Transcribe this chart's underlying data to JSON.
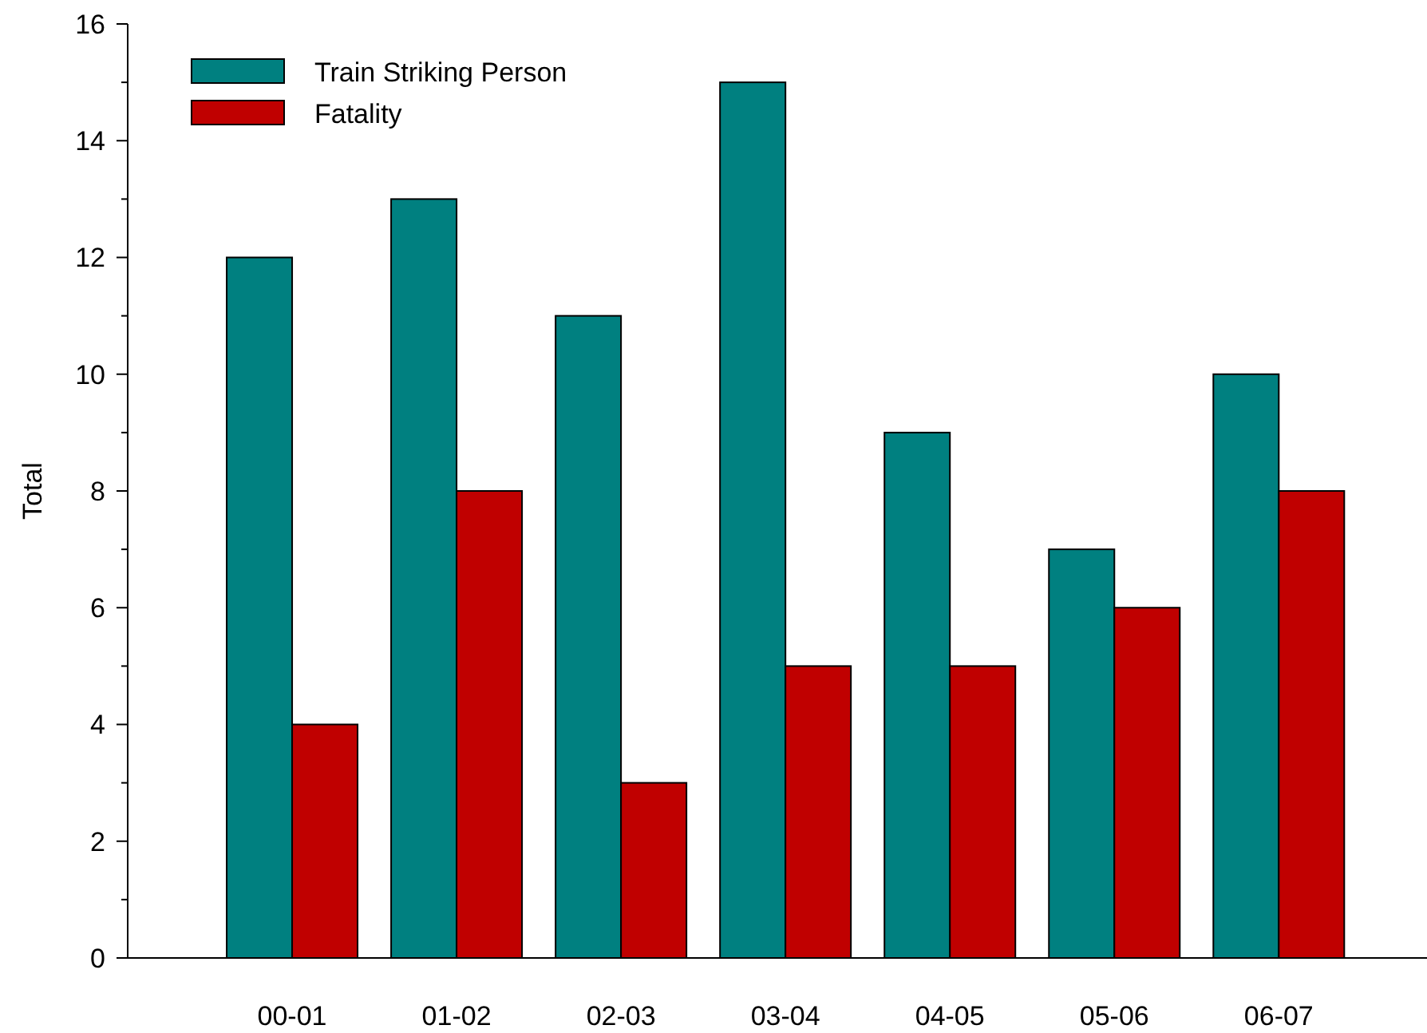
{
  "chart_data": {
    "type": "bar",
    "ylabel": "Total",
    "categories": [
      "00-01",
      "01-02",
      "02-03",
      "03-04",
      "04-05",
      "05-06",
      "06-07"
    ],
    "series": [
      {
        "name": "Train Striking Person",
        "color": "#008080",
        "values": [
          12,
          13,
          11,
          15,
          9,
          7,
          10
        ]
      },
      {
        "name": "Fatality",
        "color": "#c00000",
        "values": [
          4,
          8,
          3,
          5,
          5,
          6,
          8
        ]
      }
    ],
    "ylim": [
      0,
      16
    ],
    "yticks": [
      0,
      {
        "value": 1,
        "label": null
      },
      2,
      {
        "value": 3,
        "label": null
      },
      4,
      {
        "value": 5,
        "label": null
      },
      6,
      {
        "value": 7,
        "label": null
      },
      8,
      {
        "value": 9,
        "label": null
      },
      10,
      {
        "value": 11,
        "label": null
      },
      12,
      {
        "value": 13,
        "label": null
      },
      14,
      {
        "value": 15,
        "label": null
      },
      16
    ],
    "grid": false,
    "legend": "top left"
  }
}
